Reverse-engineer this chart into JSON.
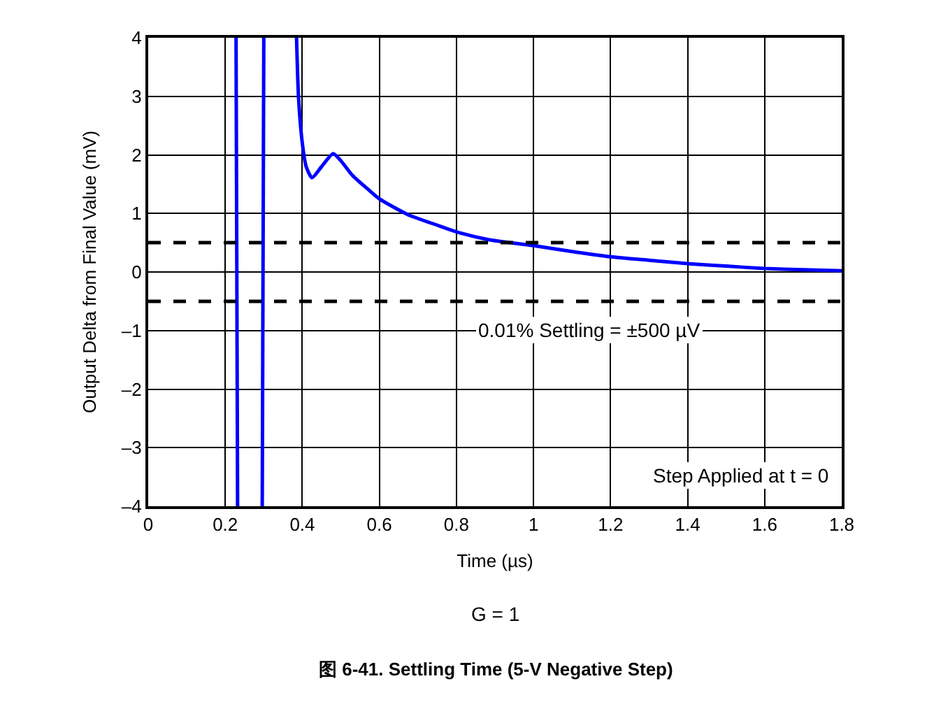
{
  "chart_data": {
    "type": "line",
    "xlabel": "Time (µs)",
    "ylabel": "Output Delta from Final Value (mV)",
    "x": [
      0.228,
      0.232,
      null,
      0.296,
      0.3,
      null,
      0.385,
      0.39,
      0.4,
      0.41,
      0.425,
      0.45,
      0.48,
      0.5,
      0.53,
      0.571,
      0.6,
      0.674,
      0.75,
      0.813,
      0.885,
      1.0,
      1.1,
      1.2,
      1.3,
      1.405,
      1.5,
      1.6,
      1.7,
      1.8
    ],
    "series": [
      {
        "color": "#0000ff",
        "values": [
          4,
          -4,
          null,
          -4,
          4,
          null,
          4,
          3,
          2.2,
          1.8,
          1.61,
          1.8,
          2.02,
          1.9,
          1.65,
          1.41,
          1.25,
          0.98,
          0.8,
          0.66,
          0.55,
          0.45,
          0.35,
          0.26,
          0.2,
          0.14,
          0.1,
          0.06,
          0.04,
          0.02
        ]
      }
    ],
    "xlim": [
      0,
      1.8
    ],
    "xticks": [
      0,
      0.2,
      0.4,
      0.6,
      0.8,
      1,
      1.2,
      1.4,
      1.6,
      1.8
    ],
    "ylim": [
      -4,
      4
    ],
    "yticks": [
      {
        "value": -4,
        "label": "–4"
      },
      {
        "value": -3,
        "label": "–3"
      },
      {
        "value": -2,
        "label": "–2"
      },
      {
        "value": -1,
        "label": "–1"
      },
      0,
      1,
      2,
      3,
      4
    ],
    "grid": true,
    "line_style": "solid",
    "marker": "none",
    "ref_lines": [
      {
        "axis": "y",
        "value": 0.5,
        "color": "#000000",
        "line_style": "dashed"
      },
      {
        "axis": "y",
        "value": -0.5,
        "color": "#000000",
        "line_style": "dashed"
      }
    ],
    "annotations": [
      "0.01% Settling = ±500 µV",
      "Step Applied at t = 0",
      "G = 1",
      "图 6-41. Settling Time (5-V Negative Step)"
    ]
  }
}
